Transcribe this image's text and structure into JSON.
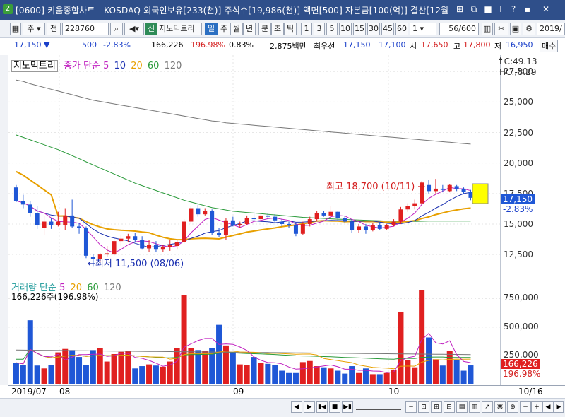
{
  "titlebar": {
    "app_badge": "2",
    "title": "[0600] 키움종합차트 - KOSDAQ 외국인보유[233(천)] 주식수[19,986(천)] 액면[500] 자본금[100(억)] 결산[12월",
    "buttons": [
      "⊞",
      "⧉",
      "■",
      "T",
      "?",
      "▪",
      "✕"
    ]
  },
  "toolbar": {
    "mode": "주",
    "prev": "전",
    "code": "228760",
    "indicator_badge": "신",
    "stock_name": "지노믹트리",
    "periods": [
      "일",
      "주",
      "월",
      "년",
      "분",
      "초",
      "틱"
    ],
    "selected_period": "일",
    "intervals": [
      "1",
      "3",
      "5",
      "10",
      "15",
      "30",
      "45",
      "60"
    ],
    "interval_value": "1",
    "count": "56/600",
    "date": "2019/"
  },
  "quote": {
    "price": "17,150",
    "change": "500",
    "change_pct": "-2.83%",
    "volume": "166,226",
    "volume_ratio": "196.98%",
    "turnover": "0.83%",
    "amount": "2,875백만",
    "best_bid_label": "최우선",
    "ask": "17,150",
    "bid": "17,100",
    "open_label": "시",
    "open": "17,650",
    "high_label": "고",
    "high": "17,800",
    "low_label": "저",
    "low": "16,950",
    "trade_button": "매수"
  },
  "price_legend": {
    "name": "지노믹트리",
    "ma_label": "종가 단순",
    "ma_periods": [
      "5",
      "10",
      "20",
      "60",
      "120"
    ]
  },
  "price_axis": {
    "ticks": [
      "27,500",
      "25,000",
      "22,500",
      "20,000",
      "17,500",
      "15,000",
      "12,500"
    ],
    "lc": "LC:49.13",
    "hc": "HC:-8.29",
    "current_tag": "17,150",
    "current_pct": "-2.83%"
  },
  "annotations": {
    "high": "최고 18,700 (10/11)",
    "low": "최저 11,500 (08/06)"
  },
  "volume_legend": {
    "label": "거래량 단순",
    "ma_periods": [
      "5",
      "20",
      "60",
      "120"
    ],
    "current": "166,226주(196.98%)"
  },
  "volume_axis": {
    "ticks": [
      "750,000",
      "500,000",
      "250,000"
    ],
    "current_tag": "166,226",
    "current_pct": "196.98%"
  },
  "x_axis": {
    "labels": [
      "2019/07",
      "08",
      "09",
      "10"
    ],
    "right_label": "10/16"
  },
  "colors": {
    "up": "#e02020",
    "down": "#1f57d6",
    "ma5": "#c020c0",
    "ma10": "#1a2fb0",
    "ma20": "#e8a000",
    "ma60": "#2a9a3a",
    "ma120": "#777777"
  },
  "chart_data": {
    "type": "candlestick",
    "ylim": [
      11000,
      28500
    ],
    "volume_ylim": [
      0,
      900000
    ],
    "candles": [
      {
        "o": 18000,
        "h": 18200,
        "l": 16800,
        "c": 16900
      },
      {
        "o": 16900,
        "h": 17400,
        "l": 16300,
        "c": 16600
      },
      {
        "o": 16600,
        "h": 16900,
        "l": 15600,
        "c": 15900
      },
      {
        "o": 15900,
        "h": 16500,
        "l": 14600,
        "c": 14900
      },
      {
        "o": 14700,
        "h": 15700,
        "l": 14100,
        "c": 15200
      },
      {
        "o": 15200,
        "h": 15500,
        "l": 14600,
        "c": 14900
      },
      {
        "o": 14900,
        "h": 16000,
        "l": 14800,
        "c": 15200
      },
      {
        "o": 14900,
        "h": 16300,
        "l": 14500,
        "c": 15700
      },
      {
        "o": 15700,
        "h": 17000,
        "l": 14700,
        "c": 14800
      },
      {
        "o": 14800,
        "h": 15100,
        "l": 14200,
        "c": 14700
      },
      {
        "o": 14700,
        "h": 14800,
        "l": 12200,
        "c": 12400
      },
      {
        "o": 12300,
        "h": 12500,
        "l": 11500,
        "c": 12100
      },
      {
        "o": 12100,
        "h": 12600,
        "l": 11900,
        "c": 12500
      },
      {
        "o": 12500,
        "h": 13200,
        "l": 12300,
        "c": 12600
      },
      {
        "o": 12500,
        "h": 13800,
        "l": 12400,
        "c": 13600
      },
      {
        "o": 13600,
        "h": 14100,
        "l": 13200,
        "c": 13800
      },
      {
        "o": 13800,
        "h": 14200,
        "l": 13500,
        "c": 14000
      },
      {
        "o": 14000,
        "h": 14300,
        "l": 13500,
        "c": 13700
      },
      {
        "o": 13700,
        "h": 14000,
        "l": 12900,
        "c": 13000
      },
      {
        "o": 13000,
        "h": 13700,
        "l": 12700,
        "c": 13300
      },
      {
        "o": 13300,
        "h": 13600,
        "l": 12700,
        "c": 12900
      },
      {
        "o": 12900,
        "h": 13300,
        "l": 12700,
        "c": 13100
      },
      {
        "o": 13100,
        "h": 13700,
        "l": 12800,
        "c": 13300
      },
      {
        "o": 13200,
        "h": 13700,
        "l": 12900,
        "c": 13500
      },
      {
        "o": 13500,
        "h": 15400,
        "l": 13400,
        "c": 15200
      },
      {
        "o": 15200,
        "h": 16500,
        "l": 15000,
        "c": 16300
      },
      {
        "o": 16300,
        "h": 16600,
        "l": 15600,
        "c": 15800
      },
      {
        "o": 15800,
        "h": 16300,
        "l": 15700,
        "c": 16100
      },
      {
        "o": 16100,
        "h": 16200,
        "l": 14100,
        "c": 14300
      },
      {
        "o": 14300,
        "h": 14700,
        "l": 13900,
        "c": 14100
      },
      {
        "o": 14100,
        "h": 15500,
        "l": 13700,
        "c": 15300
      },
      {
        "o": 15300,
        "h": 15600,
        "l": 14800,
        "c": 14900
      },
      {
        "o": 14900,
        "h": 15200,
        "l": 14700,
        "c": 15000
      },
      {
        "o": 15000,
        "h": 15700,
        "l": 14900,
        "c": 15500
      },
      {
        "o": 15500,
        "h": 16000,
        "l": 15300,
        "c": 15400
      },
      {
        "o": 15400,
        "h": 15900,
        "l": 15200,
        "c": 15700
      },
      {
        "o": 15700,
        "h": 15900,
        "l": 15400,
        "c": 15600
      },
      {
        "o": 15600,
        "h": 15800,
        "l": 15100,
        "c": 15300
      },
      {
        "o": 15200,
        "h": 15400,
        "l": 14800,
        "c": 15000
      },
      {
        "o": 15000,
        "h": 15200,
        "l": 14700,
        "c": 14900
      },
      {
        "o": 14900,
        "h": 15100,
        "l": 14000,
        "c": 14200
      },
      {
        "o": 14200,
        "h": 15200,
        "l": 14100,
        "c": 15000
      },
      {
        "o": 15000,
        "h": 15600,
        "l": 14800,
        "c": 15400
      },
      {
        "o": 15400,
        "h": 16100,
        "l": 15200,
        "c": 15900
      },
      {
        "o": 15900,
        "h": 16100,
        "l": 15600,
        "c": 15700
      },
      {
        "o": 15700,
        "h": 16500,
        "l": 15600,
        "c": 16000
      },
      {
        "o": 16000,
        "h": 16100,
        "l": 15300,
        "c": 15500
      },
      {
        "o": 15500,
        "h": 15700,
        "l": 15100,
        "c": 15200
      },
      {
        "o": 15200,
        "h": 15400,
        "l": 14300,
        "c": 14500
      },
      {
        "o": 14500,
        "h": 15000,
        "l": 14300,
        "c": 14800
      },
      {
        "o": 14800,
        "h": 15000,
        "l": 14200,
        "c": 14500
      },
      {
        "o": 14500,
        "h": 15100,
        "l": 14400,
        "c": 14900
      },
      {
        "o": 14900,
        "h": 15200,
        "l": 14500,
        "c": 14600
      },
      {
        "o": 14600,
        "h": 15000,
        "l": 14500,
        "c": 14900
      },
      {
        "o": 14900,
        "h": 15400,
        "l": 14800,
        "c": 15200
      },
      {
        "o": 15200,
        "h": 16400,
        "l": 15000,
        "c": 16200
      },
      {
        "o": 16200,
        "h": 16700,
        "l": 16000,
        "c": 16500
      },
      {
        "o": 16500,
        "h": 17000,
        "l": 16200,
        "c": 16700
      },
      {
        "o": 16700,
        "h": 18500,
        "l": 16600,
        "c": 18400
      },
      {
        "o": 18200,
        "h": 18600,
        "l": 17500,
        "c": 17700
      },
      {
        "o": 17700,
        "h": 18700,
        "l": 17500,
        "c": 17900
      },
      {
        "o": 17900,
        "h": 18200,
        "l": 17600,
        "c": 17800
      },
      {
        "o": 17700,
        "h": 18300,
        "l": 17600,
        "c": 18200
      },
      {
        "o": 18100,
        "h": 18200,
        "l": 17700,
        "c": 17900
      },
      {
        "o": 17900,
        "h": 18000,
        "l": 17500,
        "c": 17650
      },
      {
        "o": 17650,
        "h": 17800,
        "l": 16950,
        "c": 17150
      }
    ],
    "volume": [
      190000,
      170000,
      560000,
      165000,
      140000,
      170000,
      280000,
      310000,
      300000,
      240000,
      170000,
      300000,
      315000,
      200000,
      265000,
      285000,
      290000,
      140000,
      160000,
      175000,
      165000,
      155000,
      200000,
      320000,
      780000,
      315000,
      300000,
      290000,
      320000,
      520000,
      340000,
      280000,
      175000,
      170000,
      240000,
      190000,
      180000,
      170000,
      120000,
      100000,
      100000,
      195000,
      205000,
      160000,
      150000,
      140000,
      120000,
      95000,
      160000,
      100000,
      140000,
      90000,
      90000,
      100000,
      130000,
      635000,
      215000,
      150000,
      820000,
      410000,
      220000,
      165000,
      290000,
      210000,
      120000,
      166226
    ],
    "ma120": [
      26800,
      26700,
      26500,
      26350,
      26200,
      26050,
      25900,
      25750,
      25600,
      25450,
      25300,
      25150,
      25050,
      24950,
      24850,
      24750,
      24650,
      24550,
      24450,
      24350,
      24250,
      24150,
      24050,
      23950,
      23850,
      23750,
      23650,
      23550,
      23450,
      23400,
      23300,
      23250,
      23200,
      23150,
      23100,
      23050,
      23000,
      22950,
      22900,
      22850,
      22800,
      22750,
      22700,
      22650,
      22600,
      22550,
      22500,
      22450,
      22400,
      22350,
      22300,
      22250,
      22200,
      22150,
      22100,
      22050,
      22000,
      21950,
      21900,
      21850,
      21800,
      21750,
      21700,
      21650,
      21600,
      21550
    ],
    "ma60": [
      22300,
      22100,
      21900,
      21700,
      21500,
      21300,
      21100,
      20850,
      20600,
      20350,
      20100,
      19850,
      19600,
      19350,
      19100,
      18850,
      18600,
      18350,
      18150,
      17950,
      17750,
      17550,
      17350,
      17150,
      16950,
      16800,
      16650,
      16500,
      16350,
      16250,
      16150,
      16050,
      16000,
      15950,
      15900,
      15850,
      15800,
      15750,
      15700,
      15650,
      15600,
      15550,
      15520,
      15490,
      15460,
      15430,
      15400,
      15380,
      15350,
      15330,
      15310,
      15290,
      15270,
      15250,
      15240,
      15230,
      15220,
      15220,
      15230,
      15240,
      15250,
      15250,
      15250,
      15250,
      15250,
      15250
    ]
  },
  "scroll": {
    "buttons": [
      "◀",
      "▶",
      "▮◀",
      "■",
      "▶▮",
      "−",
      "+",
      "◀",
      "▶"
    ]
  }
}
